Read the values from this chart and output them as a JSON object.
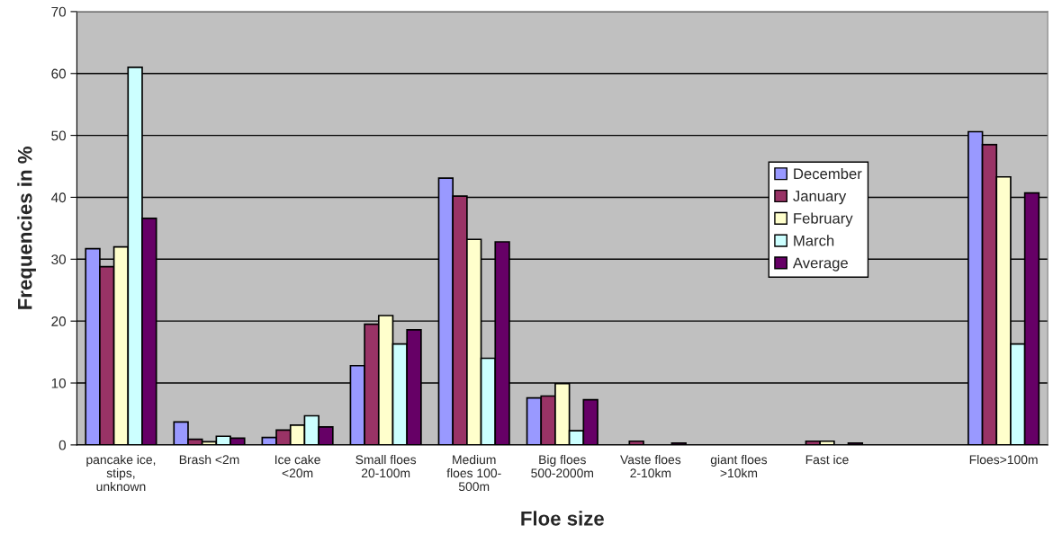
{
  "chart_data": {
    "type": "bar",
    "xlabel": "Floe size",
    "ylabel": "Frequencies in %",
    "categories": [
      "pancake ice,\nstips,\nunknown",
      "Brash <2m",
      "Ice cake\n<20m",
      "Small floes\n20-100m",
      "Medium\nfloes 100-\n500m",
      "Big floes\n500-2000m",
      "Vaste floes\n2-10km",
      "giant floes\n>10km",
      "Fast ice",
      null,
      "Floes>100m"
    ],
    "series": [
      {
        "name": "December",
        "color": "#9999ff",
        "values": [
          31.7,
          3.7,
          1.2,
          12.8,
          43.1,
          7.6,
          0,
          0,
          0,
          0,
          50.6
        ]
      },
      {
        "name": "January",
        "color": "#993366",
        "values": [
          28.8,
          0.9,
          2.4,
          19.5,
          40.2,
          7.9,
          0.6,
          0,
          0.6,
          0,
          48.5
        ]
      },
      {
        "name": "February",
        "color": "#ffffcc",
        "values": [
          32.0,
          0.5,
          3.2,
          20.9,
          33.2,
          9.9,
          0,
          0,
          0.6,
          0,
          43.3
        ]
      },
      {
        "name": "March",
        "color": "#ccffff",
        "values": [
          61.0,
          1.4,
          4.7,
          16.3,
          14.0,
          2.3,
          0,
          0,
          0,
          0,
          16.3
        ]
      },
      {
        "name": "Average",
        "color": "#660066",
        "values": [
          36.6,
          1.1,
          2.9,
          18.6,
          32.8,
          7.3,
          0.3,
          0,
          0.3,
          0,
          40.7
        ]
      }
    ],
    "ylim": [
      0,
      70
    ],
    "yticks": [
      0,
      10,
      20,
      30,
      40,
      50,
      60,
      70
    ],
    "grid": "y",
    "legend": "right"
  }
}
